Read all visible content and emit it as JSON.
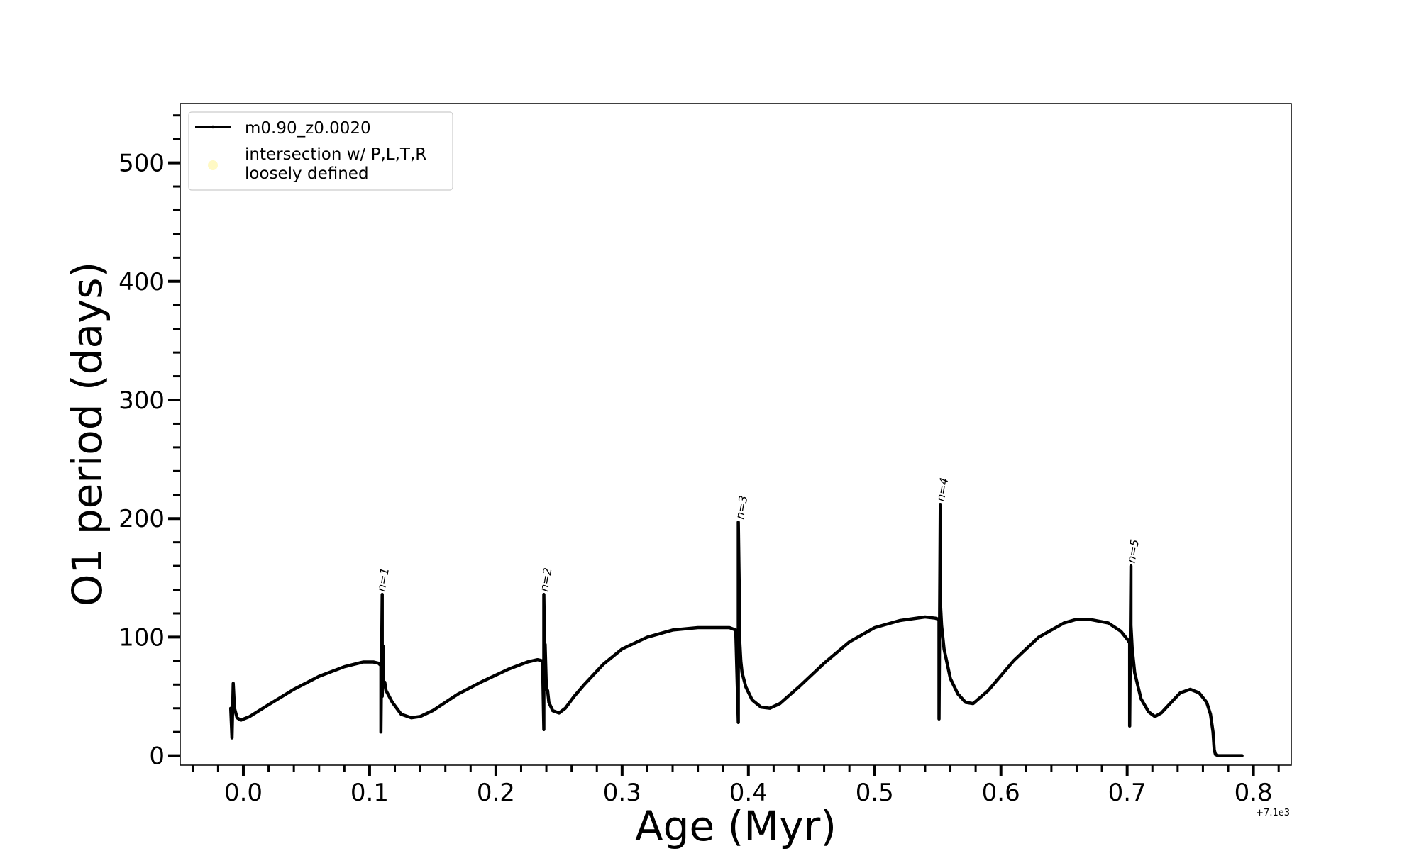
{
  "chart_data": {
    "type": "line",
    "xlabel": "Age (Myr)",
    "ylabel": "O1 period (days)",
    "x_offset_text": "+7.1e3",
    "xlim": [
      -0.05,
      0.83
    ],
    "ylim": [
      -8,
      550
    ],
    "x_ticks": [
      0.0,
      0.1,
      0.2,
      0.3,
      0.4,
      0.5,
      0.6,
      0.7,
      0.8
    ],
    "x_tick_labels": [
      "0.0",
      "0.1",
      "0.2",
      "0.3",
      "0.4",
      "0.5",
      "0.6",
      "0.7",
      "0.8"
    ],
    "y_ticks": [
      0,
      100,
      200,
      300,
      400,
      500
    ],
    "y_tick_labels": [
      "0",
      "100",
      "200",
      "300",
      "400",
      "500"
    ],
    "grid": false,
    "legend_position": "top-left",
    "legend": [
      {
        "label": "m0.90_z0.0020",
        "marker": "line-with-dot",
        "color": "#000000"
      },
      {
        "label_lines": [
          "intersection w/ P,L,T,R",
          "loosely defined"
        ],
        "marker": "circle",
        "color": "#fff9c4"
      }
    ],
    "series": [
      {
        "name": "m0.90_z0.0020",
        "color": "#000000",
        "x": [
          -0.01,
          -0.009,
          -0.008,
          -0.007,
          -0.005,
          -0.002,
          0.005,
          0.02,
          0.04,
          0.06,
          0.08,
          0.095,
          0.103,
          0.107,
          0.109,
          0.109,
          0.11,
          0.11,
          0.111,
          0.111,
          0.112,
          0.113,
          0.118,
          0.125,
          0.133,
          0.14,
          0.15,
          0.17,
          0.19,
          0.21,
          0.225,
          0.233,
          0.237,
          0.238,
          0.238,
          0.239,
          0.239,
          0.24,
          0.241,
          0.242,
          0.245,
          0.25,
          0.255,
          0.262,
          0.27,
          0.285,
          0.3,
          0.32,
          0.34,
          0.36,
          0.375,
          0.385,
          0.39,
          0.392,
          0.392,
          0.393,
          0.393,
          0.394,
          0.395,
          0.398,
          0.403,
          0.41,
          0.417,
          0.425,
          0.44,
          0.46,
          0.48,
          0.5,
          0.52,
          0.54,
          0.548,
          0.551,
          0.551,
          0.552,
          0.552,
          0.553,
          0.555,
          0.56,
          0.566,
          0.572,
          0.578,
          0.59,
          0.61,
          0.63,
          0.65,
          0.66,
          0.67,
          0.685,
          0.695,
          0.701,
          0.702,
          0.702,
          0.703,
          0.703,
          0.704,
          0.706,
          0.711,
          0.717,
          0.722,
          0.727,
          0.734,
          0.742,
          0.75,
          0.757,
          0.763,
          0.766,
          0.768,
          0.769,
          0.77,
          0.772,
          0.78,
          0.791
        ],
        "y": [
          40,
          15,
          61,
          40,
          32,
          30,
          33,
          43,
          56,
          67,
          75,
          79,
          79,
          78,
          76,
          20,
          136,
          50,
          92,
          60,
          62,
          55,
          45,
          35,
          32,
          33,
          38,
          52,
          63,
          73,
          79,
          81,
          80,
          22,
          136,
          60,
          94,
          56,
          55,
          45,
          38,
          36,
          40,
          50,
          60,
          77,
          90,
          100,
          106,
          108,
          108,
          108,
          106,
          28,
          197,
          125,
          100,
          80,
          70,
          58,
          47,
          41,
          40,
          44,
          58,
          78,
          96,
          108,
          114,
          117,
          116,
          115,
          31,
          212,
          130,
          110,
          90,
          65,
          52,
          45,
          44,
          55,
          80,
          100,
          112,
          115,
          115,
          112,
          105,
          97,
          95,
          25,
          160,
          110,
          90,
          70,
          48,
          37,
          33,
          36,
          44,
          53,
          56,
          53,
          45,
          35,
          20,
          5,
          1,
          0,
          0,
          0
        ]
      }
    ],
    "annotations": [
      {
        "text": "n=1",
        "x": 0.112,
        "y": 138
      },
      {
        "text": "n=2",
        "x": 0.241,
        "y": 138
      },
      {
        "text": "n=3",
        "x": 0.396,
        "y": 199
      },
      {
        "text": "n=4",
        "x": 0.555,
        "y": 214
      },
      {
        "text": "n=5",
        "x": 0.706,
        "y": 162
      }
    ]
  }
}
